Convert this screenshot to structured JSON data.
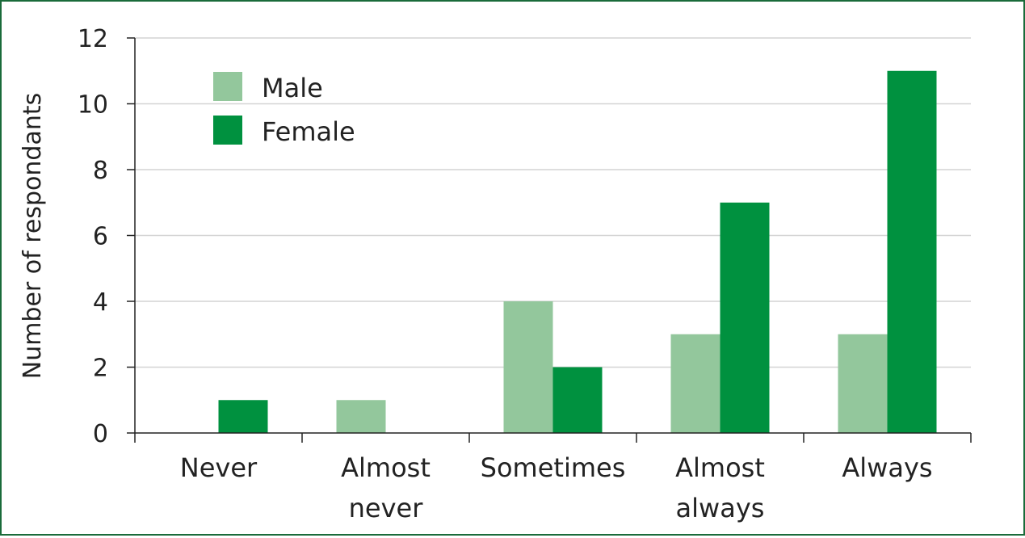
{
  "chart_data": {
    "type": "bar",
    "categories": [
      [
        "Never"
      ],
      [
        "Almost",
        "never"
      ],
      [
        "Sometimes"
      ],
      [
        "Almost",
        "always"
      ],
      [
        "Always"
      ]
    ],
    "series": [
      {
        "name": "Male",
        "color": "#93c79c",
        "values": [
          0,
          1,
          4,
          3,
          3
        ]
      },
      {
        "name": "Female",
        "color": "#00913f",
        "values": [
          1,
          0,
          2,
          7,
          11
        ]
      }
    ],
    "title": "",
    "xlabel": "",
    "ylabel": "Number of respondants",
    "ylim": [
      0,
      12
    ],
    "yticks": [
      "0",
      "2",
      "4",
      "6",
      "8",
      "10",
      "12"
    ],
    "grid": true,
    "legend_position": "top-left"
  }
}
